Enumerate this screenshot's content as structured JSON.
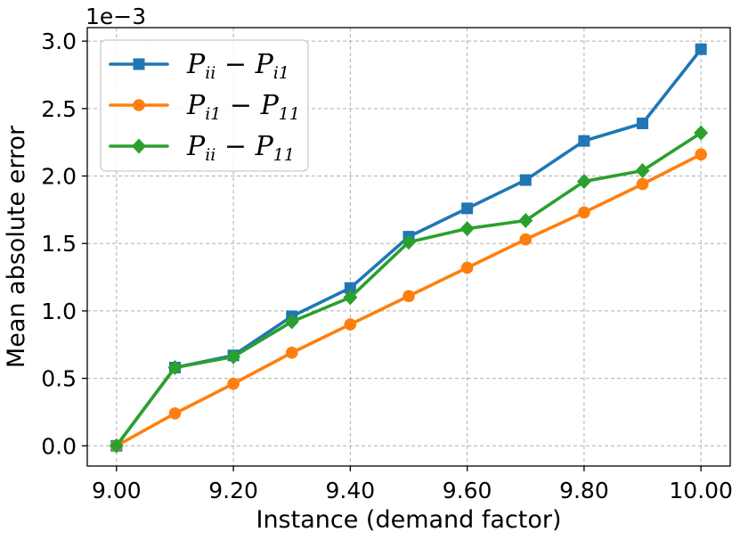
{
  "chart_data": {
    "type": "line",
    "title": "",
    "xlabel": "Instance (demand factor)",
    "ylabel": "Mean absolute error",
    "y_offset_label": "1e−3",
    "x": [
      9.0,
      9.1,
      9.2,
      9.3,
      9.4,
      9.5,
      9.6,
      9.7,
      9.8,
      9.9,
      10.0
    ],
    "xlim": [
      8.95,
      10.05
    ],
    "ylim": [
      -0.15,
      3.1
    ],
    "xticks": [
      9.0,
      9.2,
      9.4,
      9.6,
      9.8,
      10.0
    ],
    "xtick_labels": [
      "9.00",
      "9.20",
      "9.40",
      "9.60",
      "9.80",
      "10.00"
    ],
    "yticks": [
      0.0,
      0.5,
      1.0,
      1.5,
      2.0,
      2.5,
      3.0
    ],
    "ytick_labels": [
      "0.0",
      "0.5",
      "1.0",
      "1.5",
      "2.0",
      "2.5",
      "3.0"
    ],
    "grid": true,
    "legend_position": "top-left",
    "series": [
      {
        "name": "P_ii − P_i1",
        "name_parts": {
          "a": "P",
          "a_sub": "ii",
          "op": "−",
          "b": "P",
          "b_sub": "i1"
        },
        "color": "#1f77b4",
        "marker": "square",
        "values": [
          0.0,
          0.58,
          0.67,
          0.96,
          1.17,
          1.55,
          1.76,
          1.97,
          2.26,
          2.39,
          2.94
        ]
      },
      {
        "name": "P_i1 − P_11",
        "name_parts": {
          "a": "P",
          "a_sub": "i1",
          "op": "−",
          "b": "P",
          "b_sub": "11"
        },
        "color": "#ff7f0e",
        "marker": "circle",
        "values": [
          0.0,
          0.24,
          0.46,
          0.69,
          0.9,
          1.11,
          1.32,
          1.53,
          1.73,
          1.94,
          2.16
        ]
      },
      {
        "name": "P_ii − P_11",
        "name_parts": {
          "a": "P",
          "a_sub": "ii",
          "op": "−",
          "b": "P",
          "b_sub": "11"
        },
        "color": "#2ca02c",
        "marker": "diamond",
        "values": [
          0.0,
          0.58,
          0.66,
          0.92,
          1.1,
          1.51,
          1.61,
          1.67,
          1.96,
          2.04,
          2.32
        ]
      }
    ]
  }
}
